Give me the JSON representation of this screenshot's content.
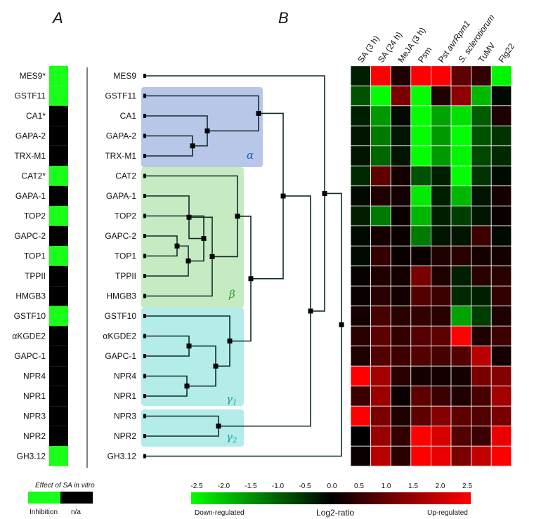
{
  "panels": {
    "a": "A",
    "b": "B"
  },
  "genes": [
    "MES9",
    "GSTF11",
    "CA1",
    "GAPA-2",
    "TRX-M1",
    "CAT2",
    "GAPA-1",
    "TOP2",
    "GAPC-2",
    "TOP1",
    "TPPII",
    "HMGB3",
    "GSTF10",
    "αKGDE2",
    "GAPC-1",
    "NPR4",
    "NPR1",
    "NPR3",
    "NPR2",
    "GH3.12"
  ],
  "panel_a": {
    "labels": [
      "MES9*",
      "GSTF11",
      "CA1*",
      "GAPA-2",
      "TRX-M1",
      "CAT2*",
      "GAPA-1",
      "TOP2",
      "GAPC-2",
      "TOP1",
      "TPPII",
      "HMGB3",
      "GSTF10",
      "αKGDE2",
      "GAPC-1",
      "NPR4",
      "NPR1",
      "NPR3",
      "NPR2",
      "GH3.12"
    ],
    "effect": [
      "inhibition",
      "inhibition",
      "n/a",
      "n/a",
      "n/a",
      "inhibition",
      "n/a",
      "inhibition",
      "n/a",
      "inhibition",
      "n/a",
      "n/a",
      "inhibition",
      "n/a",
      "n/a",
      "n/a",
      "n/a",
      "n/a",
      "n/a",
      "inhibition"
    ],
    "legend_title": "Effect of SA in vitro",
    "legend_inhibition": "Inhibition",
    "legend_na": "n/a",
    "colors": {
      "inhibition": "#1aff1a",
      "na": "#000000"
    }
  },
  "clusters": [
    {
      "label": "α",
      "color": "#1f5fbf",
      "fill": "#b8c6e8"
    },
    {
      "label": "β",
      "color": "#2e9e2e",
      "fill": "#c6ebc2"
    },
    {
      "label": "γ1",
      "color": "#1aa3a3",
      "fill": "#b3ece8"
    },
    {
      "label": "γ2",
      "color": "#1aa3a3",
      "fill": "#b3ece8"
    }
  ],
  "chart_data": {
    "type": "heatmap",
    "columns": [
      "SA (3 h)",
      "SA (24 h)",
      "MeJA (3 h)",
      "Psm",
      "Pst avrRpm1",
      "S. sclerotiorum",
      "TuMV",
      "Flg22"
    ],
    "rows": [
      "MES9",
      "GSTF11",
      "CA1",
      "GAPA-2",
      "TRX-M1",
      "CAT2",
      "GAPA-1",
      "TOP2",
      "GAPC-2",
      "TOP1",
      "TPPII",
      "HMGB3",
      "GSTF10",
      "αKGDE2",
      "GAPC-1",
      "NPR4",
      "NPR1",
      "NPR3",
      "NPR2",
      "GH3.12"
    ],
    "values": [
      [
        -0.3,
        2.8,
        0.3,
        2.8,
        2.6,
        0.9,
        0.5,
        -2.4
      ],
      [
        -0.8,
        -2.5,
        1.2,
        -2.8,
        0.3,
        1.4,
        -1.8,
        -0.1
      ],
      [
        -0.3,
        -1.5,
        -0.1,
        -2.8,
        -1.6,
        -2.2,
        -0.9,
        0.3
      ],
      [
        -0.2,
        -1.2,
        -0.2,
        -2.8,
        -1.5,
        -2.6,
        -0.8,
        -0.5
      ],
      [
        -0.2,
        -1.0,
        -0.2,
        -2.8,
        -1.5,
        -2.4,
        -0.7,
        -0.4
      ],
      [
        -0.4,
        0.9,
        0.2,
        -0.8,
        -0.3,
        -2.8,
        -0.5,
        -0.1
      ],
      [
        -0.1,
        0.3,
        0.2,
        -2.3,
        -0.3,
        -1.8,
        -0.2,
        0.2
      ],
      [
        -0.3,
        -1.2,
        0.1,
        -1.8,
        -0.3,
        -0.6,
        -0.2,
        0.1
      ],
      [
        -0.1,
        0.2,
        0.1,
        -1.2,
        -0.2,
        -0.2,
        0.6,
        -0.1
      ],
      [
        -0.1,
        0.5,
        0.1,
        0.1,
        0.3,
        0.4,
        0.2,
        0.2
      ],
      [
        0.1,
        0.3,
        0.2,
        1.2,
        0.3,
        -0.3,
        0.4,
        0.4
      ],
      [
        0.1,
        0.4,
        0.2,
        0.8,
        0.6,
        -0.4,
        -0.3,
        0.5
      ],
      [
        0.2,
        0.7,
        0.4,
        0.5,
        0.4,
        -1.6,
        -0.6,
        0.3
      ],
      [
        0.4,
        0.9,
        0.5,
        0.8,
        0.9,
        2.9,
        0.3,
        0.6
      ],
      [
        0.3,
        0.8,
        0.6,
        0.8,
        0.7,
        0.8,
        1.8,
        0.2
      ],
      [
        2.9,
        1.6,
        0.4,
        0.2,
        0.2,
        0.2,
        1.2,
        1.3
      ],
      [
        0.6,
        1.5,
        0.1,
        0.9,
        0.6,
        0.3,
        0.7,
        1.6
      ],
      [
        2.9,
        1.2,
        0.3,
        0.9,
        1.3,
        0.9,
        0.8,
        1.2
      ],
      [
        0.0,
        1.5,
        0.5,
        2.6,
        2.1,
        0.8,
        0.6,
        2.3
      ],
      [
        0.1,
        1.8,
        0.4,
        2.8,
        2.3,
        1.2,
        1.9,
        2.6
      ]
    ],
    "scale": {
      "ticks": [
        "-2.5",
        "-2.0",
        "-1.5",
        "-1.0",
        "-0.5",
        "0.0",
        "0.5",
        "1.0",
        "1.5",
        "2.0",
        "2.5"
      ],
      "range": [
        -2.5,
        2.5
      ],
      "min_label": "Down-regulated",
      "mid_label": "Log2-ratio",
      "max_label": "Up-regulated",
      "colors": {
        "low": "#00ff00",
        "mid": "#000000",
        "high": "#ff0000"
      }
    }
  }
}
